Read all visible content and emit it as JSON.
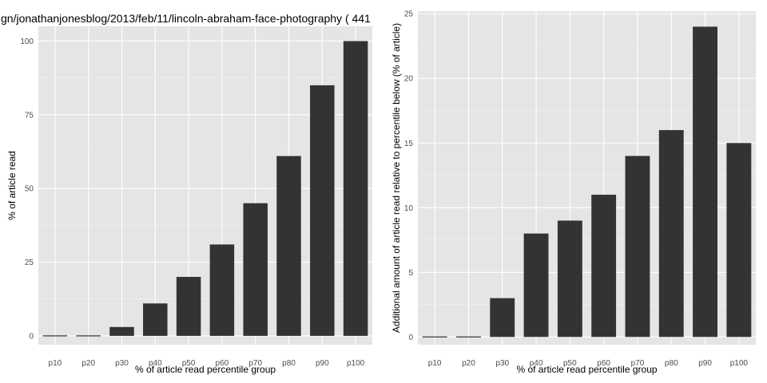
{
  "colors": {
    "panel": "#e5e5e5",
    "grid_major": "#ffffff",
    "grid_minor": "#f2f2f2",
    "bar": "#333333",
    "tick_text": "#4d4d4d"
  },
  "chart_data": [
    {
      "type": "bar",
      "title": "gn/jonathanjonesblog/2013/feb/11/lincoln-abraham-face-photography ( 441",
      "xlabel": "% of article read percentile group",
      "ylabel": "% of article read",
      "categories": [
        "p10",
        "p20",
        "p30",
        "p40",
        "p50",
        "p60",
        "p70",
        "p80",
        "p90",
        "p100"
      ],
      "values": [
        0,
        0,
        3,
        11,
        20,
        31,
        45,
        61,
        85,
        100
      ],
      "ylim": [
        -3,
        105
      ],
      "yticks": [
        0,
        25,
        50,
        75,
        100
      ],
      "grid": true
    },
    {
      "type": "bar",
      "title": "",
      "xlabel": "% of article read percentile group",
      "ylabel": "Additional amount of article read relative to percentile below (% of article)",
      "categories": [
        "p10",
        "p20",
        "p30",
        "p40",
        "p50",
        "p60",
        "p70",
        "p80",
        "p90",
        "p100"
      ],
      "values": [
        0,
        0,
        3,
        8,
        9,
        11,
        14,
        16,
        24,
        15
      ],
      "ylim": [
        -0.6,
        25.2
      ],
      "yticks": [
        0,
        5,
        10,
        15,
        20,
        25
      ],
      "grid": true
    }
  ]
}
